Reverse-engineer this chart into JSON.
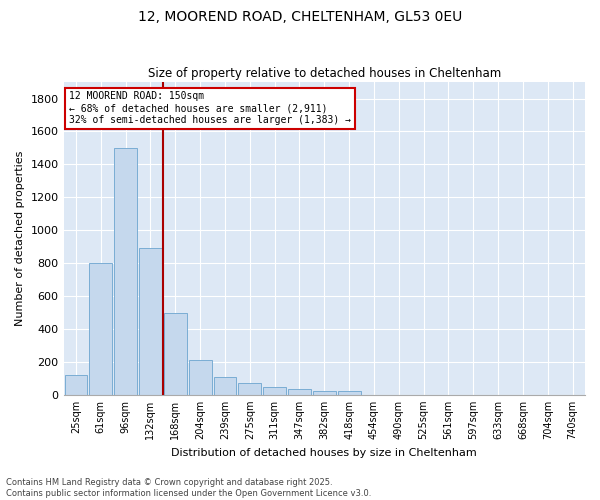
{
  "title": "12, MOOREND ROAD, CHELTENHAM, GL53 0EU",
  "subtitle": "Size of property relative to detached houses in Cheltenham",
  "xlabel": "Distribution of detached houses by size in Cheltenham",
  "ylabel": "Number of detached properties",
  "categories": [
    "25sqm",
    "61sqm",
    "96sqm",
    "132sqm",
    "168sqm",
    "204sqm",
    "239sqm",
    "275sqm",
    "311sqm",
    "347sqm",
    "382sqm",
    "418sqm",
    "454sqm",
    "490sqm",
    "525sqm",
    "561sqm",
    "597sqm",
    "633sqm",
    "668sqm",
    "704sqm",
    "740sqm"
  ],
  "values": [
    120,
    800,
    1500,
    890,
    500,
    210,
    110,
    70,
    50,
    35,
    25,
    25,
    0,
    0,
    0,
    0,
    0,
    0,
    0,
    0,
    0
  ],
  "bar_color": "#c5d8ed",
  "bar_edge_color": "#7aadd4",
  "property_line_color": "#aa0000",
  "annotation_title": "12 MOOREND ROAD: 150sqm",
  "annotation_line1": "← 68% of detached houses are smaller (2,911)",
  "annotation_line2": "32% of semi-detached houses are larger (1,383) →",
  "annotation_box_color": "#cc0000",
  "ylim": [
    0,
    1900
  ],
  "yticks": [
    0,
    200,
    400,
    600,
    800,
    1000,
    1200,
    1400,
    1600,
    1800
  ],
  "fig_bg_color": "#ffffff",
  "plot_bg_color": "#dde8f5",
  "grid_color": "#ffffff",
  "footer_line1": "Contains HM Land Registry data © Crown copyright and database right 2025.",
  "footer_line2": "Contains public sector information licensed under the Open Government Licence v3.0."
}
